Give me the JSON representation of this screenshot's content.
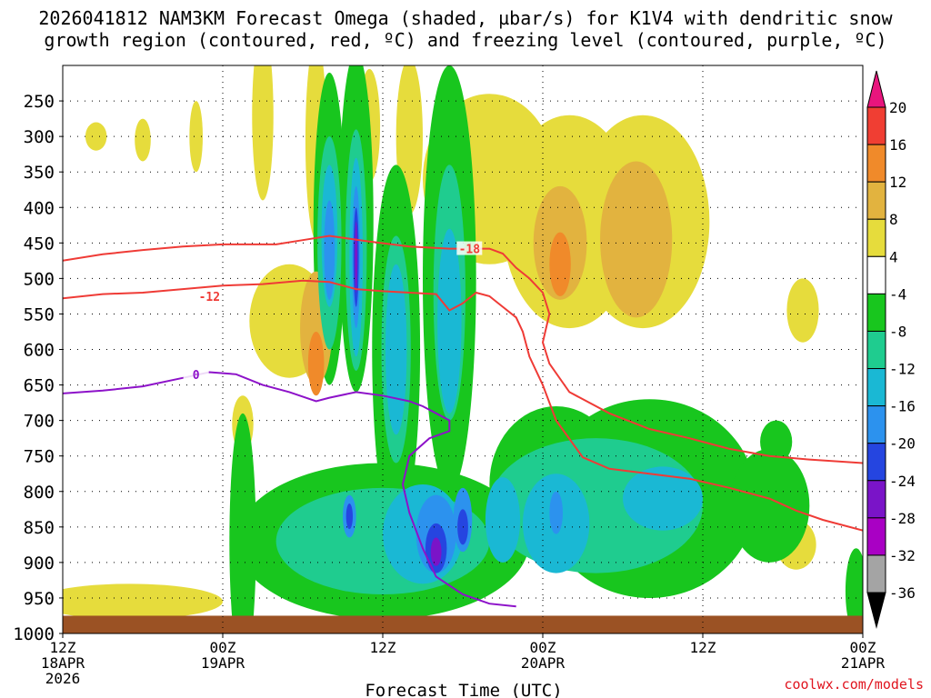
{
  "colors": {
    "background": "#ffffff",
    "ground": "#9b5224",
    "dgz_contour": "#ef3b36",
    "freezing_contour": "#8d12c9",
    "grid": "#000000",
    "credit": "#e0141e"
  },
  "credit": "coolwx.com/models",
  "chart_data": {
    "type": "heatmap",
    "title": "2026041812 NAM3KM Forecast Omega (shaded, µbar/s) for K1V4 with dendritic snow growth region (contoured, red, ºC) and freezing level (contoured, purple, ºC)",
    "title_lines": [
      "2026041812 NAM3KM Forecast Omega (shaded, µbar/s) for K1V4 with dendritic snow",
      "growth region (contoured, red, ºC) and freezing level (contoured, purple, ºC)"
    ],
    "xlabel": "Forecast Time (UTC)",
    "ylabel": "",
    "x_range_hours": [
      0,
      60
    ],
    "y_range_hpa": [
      200,
      1000
    ],
    "x_ticks": [
      {
        "hour": 0,
        "lines": [
          "12Z",
          "18APR",
          "2026"
        ]
      },
      {
        "hour": 12,
        "lines": [
          "00Z",
          "19APR"
        ]
      },
      {
        "hour": 24,
        "lines": [
          "12Z"
        ]
      },
      {
        "hour": 36,
        "lines": [
          "00Z",
          "20APR"
        ]
      },
      {
        "hour": 48,
        "lines": [
          "12Z"
        ]
      },
      {
        "hour": 60,
        "lines": [
          "00Z",
          "21APR"
        ]
      }
    ],
    "y_ticks": [
      250,
      300,
      350,
      400,
      450,
      500,
      550,
      600,
      650,
      700,
      750,
      800,
      850,
      900,
      950,
      1000
    ],
    "colorbar": {
      "levels": [
        20,
        16,
        12,
        8,
        4,
        -4,
        -8,
        -12,
        -16,
        -20,
        -24,
        -28,
        -32,
        -36
      ],
      "colors": [
        "#e8157d",
        "#f03e33",
        "#f08a2a",
        "#e2b33f",
        "#e6dc3c",
        "#ffffff",
        "#18c61e",
        "#1fcc8f",
        "#1ab8d4",
        "#2c92ee",
        "#2545e0",
        "#7a14c8",
        "#a900c4",
        "#a4a4a4",
        "#000000"
      ]
    },
    "ground_pressure_hpa": 975,
    "contours": [
      {
        "name": "dendritic -18C",
        "label": "-18",
        "color": "#ef3b36",
        "label_at": [
          30.5,
          458
        ],
        "points": [
          [
            0,
            475
          ],
          [
            3,
            466
          ],
          [
            6,
            460
          ],
          [
            9,
            455
          ],
          [
            12,
            452
          ],
          [
            16,
            452
          ],
          [
            18,
            446
          ],
          [
            20,
            440
          ],
          [
            23,
            448
          ],
          [
            26,
            455
          ],
          [
            29,
            458
          ],
          [
            32,
            458
          ],
          [
            33,
            465
          ],
          [
            34,
            485
          ],
          [
            35,
            500
          ],
          [
            36,
            520
          ],
          [
            36.5,
            550
          ],
          [
            36,
            590
          ],
          [
            36.5,
            620
          ],
          [
            38,
            660
          ],
          [
            41,
            690
          ],
          [
            44,
            712
          ],
          [
            47,
            725
          ],
          [
            50,
            740
          ],
          [
            53,
            750
          ],
          [
            56,
            755
          ],
          [
            60,
            760
          ]
        ]
      },
      {
        "name": "dendritic -12C",
        "label": "-12",
        "color": "#ef3b36",
        "label_at": [
          11,
          525
        ],
        "points": [
          [
            0,
            528
          ],
          [
            3,
            522
          ],
          [
            6,
            520
          ],
          [
            9,
            515
          ],
          [
            12,
            510
          ],
          [
            15,
            508
          ],
          [
            18,
            503
          ],
          [
            20,
            505
          ],
          [
            22,
            515
          ],
          [
            24,
            518
          ],
          [
            26,
            520
          ],
          [
            28,
            522
          ],
          [
            29,
            545
          ],
          [
            30,
            535
          ],
          [
            31,
            520
          ],
          [
            32,
            525
          ],
          [
            33,
            540
          ],
          [
            34,
            555
          ],
          [
            34.5,
            575
          ],
          [
            35,
            610
          ],
          [
            36,
            650
          ],
          [
            37,
            700
          ],
          [
            39,
            752
          ],
          [
            41,
            768
          ],
          [
            44,
            775
          ],
          [
            47,
            782
          ],
          [
            50,
            795
          ],
          [
            53,
            810
          ],
          [
            55,
            827
          ],
          [
            57,
            840
          ],
          [
            60,
            855
          ]
        ]
      },
      {
        "name": "freezing 0C",
        "label": "0",
        "color": "#8d12c9",
        "label_at": [
          10,
          635
        ],
        "points": [
          [
            0,
            662
          ],
          [
            3,
            658
          ],
          [
            6,
            652
          ],
          [
            9,
            640
          ],
          [
            11,
            632
          ],
          [
            13,
            635
          ],
          [
            15,
            650
          ],
          [
            17,
            660
          ],
          [
            19,
            673
          ],
          [
            20,
            668
          ],
          [
            22,
            660
          ],
          [
            24,
            665
          ],
          [
            26,
            673
          ],
          [
            27,
            680
          ],
          [
            28,
            690
          ],
          [
            29,
            700
          ],
          [
            29,
            715
          ],
          [
            27.5,
            725
          ],
          [
            26,
            750
          ],
          [
            25.5,
            790
          ],
          [
            26,
            830
          ],
          [
            27,
            880
          ],
          [
            28,
            920
          ],
          [
            30,
            945
          ],
          [
            32,
            958
          ],
          [
            34,
            962
          ]
        ]
      }
    ],
    "omega_regions": [
      {
        "value": 6,
        "center": [
          6,
          305
        ],
        "radius": [
          0.6,
          30
        ]
      },
      {
        "value": 6,
        "center": [
          2.5,
          300
        ],
        "radius": [
          0.8,
          20
        ]
      },
      {
        "value": 6,
        "center": [
          10,
          300
        ],
        "radius": [
          0.5,
          50
        ]
      },
      {
        "value": 6,
        "center": [
          15,
          270
        ],
        "radius": [
          0.8,
          120
        ]
      },
      {
        "value": 6,
        "center": [
          19,
          305
        ],
        "radius": [
          0.8,
          140
        ]
      },
      {
        "value": 6,
        "center": [
          23,
          285
        ],
        "radius": [
          0.8,
          80
        ]
      },
      {
        "value": 6,
        "center": [
          26,
          300
        ],
        "radius": [
          1,
          110
        ]
      },
      {
        "value": 6,
        "center": [
          32,
          360
        ],
        "radius": [
          5,
          120
        ]
      },
      {
        "value": 6,
        "center": [
          38,
          420
        ],
        "radius": [
          5,
          150
        ]
      },
      {
        "value": 6,
        "center": [
          43.5,
          420
        ],
        "radius": [
          5,
          150
        ]
      },
      {
        "value": 6,
        "center": [
          55.5,
          545
        ],
        "radius": [
          1.2,
          45
        ]
      },
      {
        "value": 6,
        "center": [
          55,
          875
        ],
        "radius": [
          1.5,
          35
        ]
      },
      {
        "value": 6,
        "center": [
          5,
          955
        ],
        "radius": [
          7,
          25
        ]
      },
      {
        "value": 6,
        "center": [
          17,
          560
        ],
        "radius": [
          3,
          80
        ]
      },
      {
        "value": 6,
        "center": [
          13.5,
          705
        ],
        "radius": [
          0.8,
          40
        ]
      },
      {
        "value": 10,
        "center": [
          37.3,
          450
        ],
        "radius": [
          2,
          80
        ]
      },
      {
        "value": 10,
        "center": [
          43,
          445
        ],
        "radius": [
          2.7,
          110
        ]
      },
      {
        "value": 10,
        "center": [
          19,
          570
        ],
        "radius": [
          1.2,
          80
        ]
      },
      {
        "value": 14,
        "center": [
          37.3,
          480
        ],
        "radius": [
          0.8,
          45
        ]
      },
      {
        "value": 14,
        "center": [
          19,
          620
        ],
        "radius": [
          0.6,
          45
        ]
      },
      {
        "value": -6,
        "center": [
          20,
          430
        ],
        "radius": [
          1.2,
          220
        ]
      },
      {
        "value": -6,
        "center": [
          22,
          420
        ],
        "radius": [
          1.3,
          240
        ]
      },
      {
        "value": -6,
        "center": [
          25,
          600
        ],
        "radius": [
          1.8,
          260
        ]
      },
      {
        "value": -6,
        "center": [
          29,
          500
        ],
        "radius": [
          2,
          300
        ]
      },
      {
        "value": -6,
        "center": [
          24,
          870
        ],
        "radius": [
          11,
          110
        ]
      },
      {
        "value": -6,
        "center": [
          37,
          790
        ],
        "radius": [
          5,
          110
        ]
      },
      {
        "value": -6,
        "center": [
          44,
          810
        ],
        "radius": [
          8,
          140
        ]
      },
      {
        "value": -6,
        "center": [
          53,
          820
        ],
        "radius": [
          3,
          80
        ]
      },
      {
        "value": -6,
        "center": [
          53.5,
          730
        ],
        "radius": [
          1.2,
          30
        ]
      },
      {
        "value": -6,
        "center": [
          59.5,
          940
        ],
        "radius": [
          0.8,
          60
        ]
      },
      {
        "value": -6,
        "center": [
          13.5,
          870
        ],
        "radius": [
          1,
          180
        ]
      },
      {
        "value": -10,
        "center": [
          20,
          450
        ],
        "radius": [
          0.9,
          150
        ]
      },
      {
        "value": -10,
        "center": [
          22,
          460
        ],
        "radius": [
          0.8,
          170
        ]
      },
      {
        "value": -10,
        "center": [
          25,
          600
        ],
        "radius": [
          1.1,
          160
        ]
      },
      {
        "value": -10,
        "center": [
          29,
          520
        ],
        "radius": [
          1.2,
          180
        ]
      },
      {
        "value": -10,
        "center": [
          24,
          870
        ],
        "radius": [
          8,
          75
        ]
      },
      {
        "value": -10,
        "center": [
          40,
          820
        ],
        "radius": [
          8,
          95
        ]
      },
      {
        "value": -14,
        "center": [
          20,
          440
        ],
        "radius": [
          0.6,
          100
        ]
      },
      {
        "value": -14,
        "center": [
          22,
          470
        ],
        "radius": [
          0.5,
          140
        ]
      },
      {
        "value": -14,
        "center": [
          25,
          600
        ],
        "radius": [
          0.8,
          120
        ]
      },
      {
        "value": -14,
        "center": [
          29,
          560
        ],
        "radius": [
          0.9,
          130
        ]
      },
      {
        "value": -14,
        "center": [
          27,
          860
        ],
        "radius": [
          3,
          70
        ]
      },
      {
        "value": -14,
        "center": [
          33,
          840
        ],
        "radius": [
          1.3,
          60
        ]
      },
      {
        "value": -14,
        "center": [
          37,
          845
        ],
        "radius": [
          2.5,
          70
        ]
      },
      {
        "value": -14,
        "center": [
          45,
          810
        ],
        "radius": [
          3,
          45
        ]
      },
      {
        "value": -18,
        "center": [
          20,
          460
        ],
        "radius": [
          0.4,
          70
        ]
      },
      {
        "value": -18,
        "center": [
          22,
          470
        ],
        "radius": [
          0.3,
          100
        ]
      },
      {
        "value": -18,
        "center": [
          28,
          860
        ],
        "radius": [
          1.5,
          55
        ]
      },
      {
        "value": -18,
        "center": [
          30,
          840
        ],
        "radius": [
          0.7,
          45
        ]
      },
      {
        "value": -18,
        "center": [
          21.5,
          835
        ],
        "radius": [
          0.5,
          30
        ]
      },
      {
        "value": -18,
        "center": [
          37,
          830
        ],
        "radius": [
          0.5,
          30
        ]
      },
      {
        "value": -22,
        "center": [
          22,
          470
        ],
        "radius": [
          0.2,
          70
        ]
      },
      {
        "value": -22,
        "center": [
          28,
          880
        ],
        "radius": [
          0.8,
          35
        ]
      },
      {
        "value": -22,
        "center": [
          30,
          850
        ],
        "radius": [
          0.4,
          25
        ]
      },
      {
        "value": -22,
        "center": [
          21.5,
          835
        ],
        "radius": [
          0.25,
          18
        ]
      },
      {
        "value": -26,
        "center": [
          22,
          470
        ],
        "radius": [
          0.1,
          50
        ]
      },
      {
        "value": -26,
        "center": [
          28,
          885
        ],
        "radius": [
          0.4,
          20
        ]
      }
    ]
  }
}
